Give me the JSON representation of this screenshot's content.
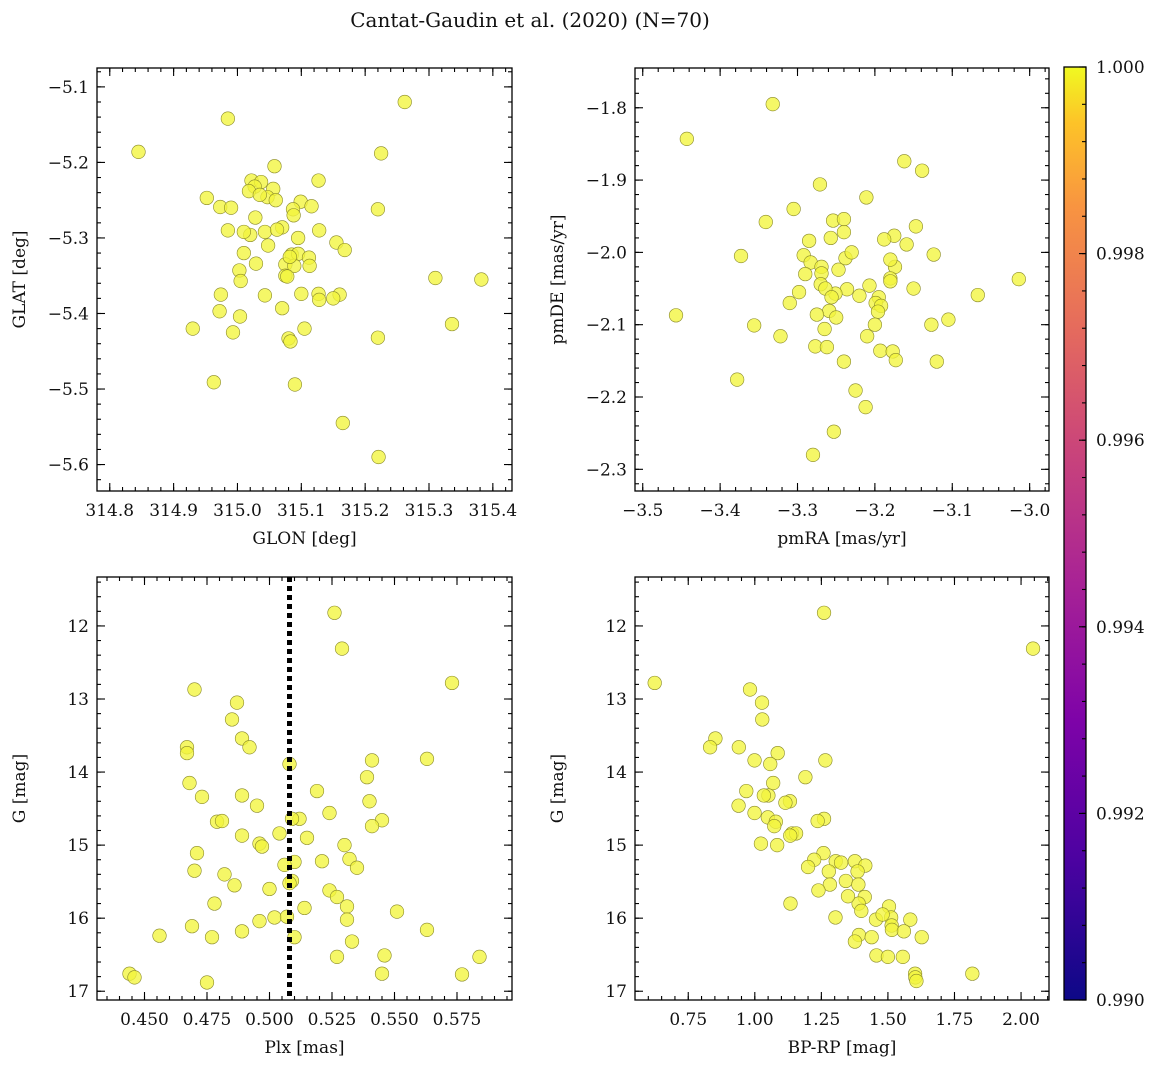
{
  "figure": {
    "title": "Cantat-Gaudin et al. (2020) (N=70)"
  },
  "colors": {
    "point": "#f2f53c",
    "point_edge": "#8a8a2a",
    "reference_line": "#000000"
  },
  "colorbar": {
    "range": [
      0.99,
      1.0
    ],
    "ticks": [
      "0.990",
      "0.992",
      "0.994",
      "0.996",
      "0.998",
      "1.000"
    ],
    "colormap": "plasma"
  },
  "chart_data": [
    {
      "type": "scatter",
      "xlabel": "GLON [deg]",
      "ylabel": "GLAT [deg]",
      "xlim": [
        314.78,
        315.43
      ],
      "ylim": [
        -5.635,
        -5.075
      ],
      "y_inverted": false,
      "xticks": [
        "314.8",
        "314.9",
        "315.0",
        "315.1",
        "315.2",
        "315.3",
        "315.4"
      ],
      "yticks": [
        "−5.1",
        "−5.2",
        "−5.3",
        "−5.4",
        "−5.5",
        "−5.6"
      ],
      "xtick_values": [
        314.8,
        314.9,
        315.0,
        315.1,
        315.2,
        315.3,
        315.4
      ],
      "ytick_values": [
        -5.1,
        -5.2,
        -5.3,
        -5.4,
        -5.5,
        -5.6
      ],
      "points": [
        [
          314.845,
          -5.186
        ],
        [
          314.985,
          -5.142
        ],
        [
          315.262,
          -5.12
        ],
        [
          315.225,
          -5.188
        ],
        [
          315.058,
          -5.205
        ],
        [
          315.022,
          -5.224
        ],
        [
          315.037,
          -5.226
        ],
        [
          315.056,
          -5.235
        ],
        [
          315.027,
          -5.232
        ],
        [
          315.018,
          -5.238
        ],
        [
          315.127,
          -5.224
        ],
        [
          315.099,
          -5.252
        ],
        [
          314.952,
          -5.247
        ],
        [
          314.973,
          -5.259
        ],
        [
          314.99,
          -5.26
        ],
        [
          315.22,
          -5.262
        ],
        [
          315.087,
          -5.262
        ],
        [
          315.047,
          -5.246
        ],
        [
          315.035,
          -5.243
        ],
        [
          315.028,
          -5.273
        ],
        [
          315.088,
          -5.27
        ],
        [
          315.116,
          -5.258
        ],
        [
          315.02,
          -5.296
        ],
        [
          315.07,
          -5.286
        ],
        [
          315.043,
          -5.292
        ],
        [
          315.062,
          -5.289
        ],
        [
          315.01,
          -5.292
        ],
        [
          314.985,
          -5.29
        ],
        [
          315.128,
          -5.29
        ],
        [
          315.155,
          -5.306
        ],
        [
          315.168,
          -5.316
        ],
        [
          315.085,
          -5.322
        ],
        [
          315.095,
          -5.321
        ],
        [
          315.075,
          -5.335
        ],
        [
          315.029,
          -5.334
        ],
        [
          315.112,
          -5.326
        ],
        [
          315.113,
          -5.337
        ],
        [
          315.089,
          -5.337
        ],
        [
          315.082,
          -5.325
        ],
        [
          315.003,
          -5.343
        ],
        [
          315.075,
          -5.35
        ],
        [
          315.078,
          -5.351
        ],
        [
          315.005,
          -5.357
        ],
        [
          315.31,
          -5.353
        ],
        [
          315.382,
          -5.355
        ],
        [
          315.043,
          -5.376
        ],
        [
          315.127,
          -5.374
        ],
        [
          315.16,
          -5.375
        ],
        [
          314.974,
          -5.375
        ],
        [
          315.1,
          -5.374
        ],
        [
          315.07,
          -5.393
        ],
        [
          315.128,
          -5.382
        ],
        [
          314.972,
          -5.397
        ],
        [
          315.004,
          -5.404
        ],
        [
          315.336,
          -5.414
        ],
        [
          314.93,
          -5.42
        ],
        [
          314.993,
          -5.425
        ],
        [
          315.105,
          -5.42
        ],
        [
          315.08,
          -5.433
        ],
        [
          315.083,
          -5.437
        ],
        [
          315.22,
          -5.432
        ],
        [
          314.963,
          -5.491
        ],
        [
          315.09,
          -5.494
        ],
        [
          315.165,
          -5.545
        ],
        [
          315.221,
          -5.59
        ],
        [
          315.048,
          -5.31
        ],
        [
          315.095,
          -5.3
        ],
        [
          315.06,
          -5.25
        ],
        [
          315.01,
          -5.32
        ],
        [
          315.15,
          -5.38
        ]
      ]
    },
    {
      "type": "scatter",
      "xlabel": "pmRA [mas/yr]",
      "ylabel": "pmDE [mas/yr]",
      "xlim": [
        -3.51,
        -2.975
      ],
      "ylim": [
        -2.33,
        -1.745
      ],
      "y_inverted": false,
      "xticks": [
        "−3.5",
        "−3.4",
        "−3.3",
        "−3.2",
        "−3.1",
        "−3.0"
      ],
      "yticks": [
        "−1.8",
        "−1.9",
        "−2.0",
        "−2.1",
        "−2.2",
        "−2.3"
      ],
      "xtick_values": [
        -3.5,
        -3.4,
        -3.3,
        -3.2,
        -3.1,
        -3.0
      ],
      "ytick_values": [
        -1.8,
        -1.9,
        -2.0,
        -2.1,
        -2.2,
        -2.3
      ],
      "points": [
        [
          -3.332,
          -1.795
        ],
        [
          -3.443,
          -1.843
        ],
        [
          -3.162,
          -1.874
        ],
        [
          -3.139,
          -1.887
        ],
        [
          -3.271,
          -1.906
        ],
        [
          -3.211,
          -1.924
        ],
        [
          -3.305,
          -1.94
        ],
        [
          -3.341,
          -1.958
        ],
        [
          -3.254,
          -1.956
        ],
        [
          -3.24,
          -1.954
        ],
        [
          -3.147,
          -1.964
        ],
        [
          -3.24,
          -1.972
        ],
        [
          -3.175,
          -1.977
        ],
        [
          -3.188,
          -1.982
        ],
        [
          -3.257,
          -1.98
        ],
        [
          -3.285,
          -1.984
        ],
        [
          -3.159,
          -1.989
        ],
        [
          -3.373,
          -2.005
        ],
        [
          -3.292,
          -2.004
        ],
        [
          -3.124,
          -2.003
        ],
        [
          -3.238,
          -2.008
        ],
        [
          -3.283,
          -2.014
        ],
        [
          -3.269,
          -2.02
        ],
        [
          -3.174,
          -2.02
        ],
        [
          -3.247,
          -2.024
        ],
        [
          -3.269,
          -2.029
        ],
        [
          -3.18,
          -2.036
        ],
        [
          -3.18,
          -2.04
        ],
        [
          -3.014,
          -2.037
        ],
        [
          -3.207,
          -2.046
        ],
        [
          -3.27,
          -2.044
        ],
        [
          -3.236,
          -2.051
        ],
        [
          -3.251,
          -2.057
        ],
        [
          -3.264,
          -2.05
        ],
        [
          -3.298,
          -2.055
        ],
        [
          -3.067,
          -2.059
        ],
        [
          -3.256,
          -2.062
        ],
        [
          -3.195,
          -2.062
        ],
        [
          -3.199,
          -2.07
        ],
        [
          -3.192,
          -2.074
        ],
        [
          -3.259,
          -2.081
        ],
        [
          -3.196,
          -2.082
        ],
        [
          -3.275,
          -2.086
        ],
        [
          -3.457,
          -2.087
        ],
        [
          -3.105,
          -2.093
        ],
        [
          -3.127,
          -2.1
        ],
        [
          -3.356,
          -2.101
        ],
        [
          -3.265,
          -2.106
        ],
        [
          -3.21,
          -2.116
        ],
        [
          -3.322,
          -2.116
        ],
        [
          -3.277,
          -2.13
        ],
        [
          -3.262,
          -2.131
        ],
        [
          -3.193,
          -2.136
        ],
        [
          -3.177,
          -2.137
        ],
        [
          -3.173,
          -2.149
        ],
        [
          -3.24,
          -2.151
        ],
        [
          -3.12,
          -2.151
        ],
        [
          -3.378,
          -2.176
        ],
        [
          -3.225,
          -2.191
        ],
        [
          -3.212,
          -2.214
        ],
        [
          -3.253,
          -2.248
        ],
        [
          -3.28,
          -2.28
        ],
        [
          -3.23,
          -2.0
        ],
        [
          -3.2,
          -2.1
        ],
        [
          -3.29,
          -2.03
        ],
        [
          -3.22,
          -2.06
        ],
        [
          -3.18,
          -2.01
        ],
        [
          -3.25,
          -2.09
        ],
        [
          -3.31,
          -2.07
        ],
        [
          -3.15,
          -2.05
        ]
      ]
    },
    {
      "type": "scatter",
      "xlabel": "Plx [mas]",
      "ylabel": "G [mag]",
      "xlim": [
        0.431,
        0.597
      ],
      "ylim": [
        17.12,
        11.33
      ],
      "y_inverted": true,
      "reference_x": 0.508,
      "xticks": [
        "0.450",
        "0.475",
        "0.500",
        "0.525",
        "0.550",
        "0.575"
      ],
      "yticks": [
        "12",
        "13",
        "14",
        "15",
        "16",
        "17"
      ],
      "xtick_values": [
        0.45,
        0.475,
        0.5,
        0.525,
        0.55,
        0.575
      ],
      "ytick_values": [
        12,
        13,
        14,
        15,
        16,
        17
      ],
      "points": [
        [
          0.526,
          11.82
        ],
        [
          0.529,
          12.31
        ],
        [
          0.573,
          12.78
        ],
        [
          0.47,
          12.87
        ],
        [
          0.487,
          13.05
        ],
        [
          0.485,
          13.28
        ],
        [
          0.489,
          13.54
        ],
        [
          0.467,
          13.66
        ],
        [
          0.492,
          13.66
        ],
        [
          0.467,
          13.74
        ],
        [
          0.563,
          13.82
        ],
        [
          0.541,
          13.84
        ],
        [
          0.508,
          13.89
        ],
        [
          0.539,
          14.07
        ],
        [
          0.468,
          14.15
        ],
        [
          0.519,
          14.26
        ],
        [
          0.473,
          14.34
        ],
        [
          0.489,
          14.32
        ],
        [
          0.54,
          14.4
        ],
        [
          0.495,
          14.46
        ],
        [
          0.524,
          14.56
        ],
        [
          0.512,
          14.64
        ],
        [
          0.479,
          14.68
        ],
        [
          0.481,
          14.67
        ],
        [
          0.509,
          14.64
        ],
        [
          0.545,
          14.66
        ],
        [
          0.541,
          14.74
        ],
        [
          0.504,
          14.84
        ],
        [
          0.489,
          14.87
        ],
        [
          0.496,
          14.98
        ],
        [
          0.497,
          15.02
        ],
        [
          0.471,
          15.11
        ],
        [
          0.521,
          15.22
        ],
        [
          0.532,
          15.19
        ],
        [
          0.51,
          15.23
        ],
        [
          0.506,
          15.27
        ],
        [
          0.47,
          15.35
        ],
        [
          0.535,
          15.31
        ],
        [
          0.509,
          15.49
        ],
        [
          0.486,
          15.55
        ],
        [
          0.508,
          15.52
        ],
        [
          0.524,
          15.62
        ],
        [
          0.527,
          15.71
        ],
        [
          0.478,
          15.8
        ],
        [
          0.514,
          15.86
        ],
        [
          0.531,
          15.84
        ],
        [
          0.551,
          15.91
        ],
        [
          0.502,
          15.99
        ],
        [
          0.507,
          15.98
        ],
        [
          0.496,
          16.04
        ],
        [
          0.531,
          16.02
        ],
        [
          0.469,
          16.11
        ],
        [
          0.489,
          16.18
        ],
        [
          0.456,
          16.24
        ],
        [
          0.477,
          16.26
        ],
        [
          0.51,
          16.26
        ],
        [
          0.533,
          16.32
        ],
        [
          0.563,
          16.16
        ],
        [
          0.546,
          16.51
        ],
        [
          0.527,
          16.53
        ],
        [
          0.584,
          16.53
        ],
        [
          0.444,
          16.76
        ],
        [
          0.446,
          16.81
        ],
        [
          0.545,
          16.76
        ],
        [
          0.577,
          16.77
        ],
        [
          0.475,
          16.88
        ],
        [
          0.5,
          15.6
        ],
        [
          0.515,
          14.9
        ],
        [
          0.482,
          15.4
        ],
        [
          0.53,
          15.0
        ]
      ]
    },
    {
      "type": "scatter",
      "xlabel": "BP-RP [mag]",
      "ylabel": "G [mag]",
      "xlim": [
        0.55,
        2.105
      ],
      "ylim": [
        17.12,
        11.33
      ],
      "y_inverted": true,
      "xticks": [
        "0.75",
        "1.00",
        "1.25",
        "1.50",
        "1.75",
        "2.00"
      ],
      "yticks": [
        "12",
        "13",
        "14",
        "15",
        "16",
        "17"
      ],
      "xtick_values": [
        0.75,
        1.0,
        1.25,
        1.5,
        1.75,
        2.0
      ],
      "ytick_values": [
        12,
        13,
        14,
        15,
        16,
        17
      ],
      "points": [
        [
          1.26,
          11.82
        ],
        [
          2.045,
          12.31
        ],
        [
          0.624,
          12.78
        ],
        [
          0.982,
          12.87
        ],
        [
          1.027,
          13.05
        ],
        [
          1.028,
          13.28
        ],
        [
          0.852,
          13.54
        ],
        [
          0.832,
          13.66
        ],
        [
          0.94,
          13.66
        ],
        [
          1.086,
          13.74
        ],
        [
          1.265,
          13.84
        ],
        [
          0.999,
          13.84
        ],
        [
          1.058,
          13.89
        ],
        [
          1.19,
          14.07
        ],
        [
          1.069,
          14.15
        ],
        [
          0.968,
          14.26
        ],
        [
          1.051,
          14.32
        ],
        [
          1.034,
          14.32
        ],
        [
          1.132,
          14.4
        ],
        [
          1.115,
          14.42
        ],
        [
          0.939,
          14.46
        ],
        [
          0.999,
          14.56
        ],
        [
          1.26,
          14.64
        ],
        [
          1.236,
          14.67
        ],
        [
          1.049,
          14.62
        ],
        [
          1.079,
          14.68
        ],
        [
          1.073,
          14.74
        ],
        [
          1.14,
          14.84
        ],
        [
          1.155,
          14.84
        ],
        [
          1.133,
          14.87
        ],
        [
          1.084,
          15.0
        ],
        [
          1.023,
          14.98
        ],
        [
          1.258,
          15.11
        ],
        [
          1.223,
          15.2
        ],
        [
          1.304,
          15.22
        ],
        [
          1.376,
          15.22
        ],
        [
          1.415,
          15.28
        ],
        [
          1.324,
          15.24
        ],
        [
          1.278,
          15.36
        ],
        [
          1.386,
          15.36
        ],
        [
          1.342,
          15.49
        ],
        [
          1.282,
          15.54
        ],
        [
          1.389,
          15.54
        ],
        [
          1.239,
          15.62
        ],
        [
          1.413,
          15.71
        ],
        [
          1.39,
          15.8
        ],
        [
          1.134,
          15.8
        ],
        [
          1.504,
          15.84
        ],
        [
          1.4,
          15.9
        ],
        [
          1.512,
          15.99
        ],
        [
          1.455,
          16.02
        ],
        [
          1.584,
          16.02
        ],
        [
          1.303,
          15.99
        ],
        [
          1.514,
          16.1
        ],
        [
          1.515,
          16.16
        ],
        [
          1.56,
          16.18
        ],
        [
          1.391,
          16.23
        ],
        [
          1.439,
          16.26
        ],
        [
          1.627,
          16.26
        ],
        [
          1.376,
          16.32
        ],
        [
          1.457,
          16.51
        ],
        [
          1.5,
          16.53
        ],
        [
          1.556,
          16.53
        ],
        [
          1.602,
          16.76
        ],
        [
          1.817,
          16.76
        ],
        [
          1.603,
          16.81
        ],
        [
          1.607,
          16.86
        ],
        [
          1.35,
          15.7
        ],
        [
          1.2,
          15.3
        ],
        [
          1.48,
          15.95
        ]
      ]
    }
  ]
}
